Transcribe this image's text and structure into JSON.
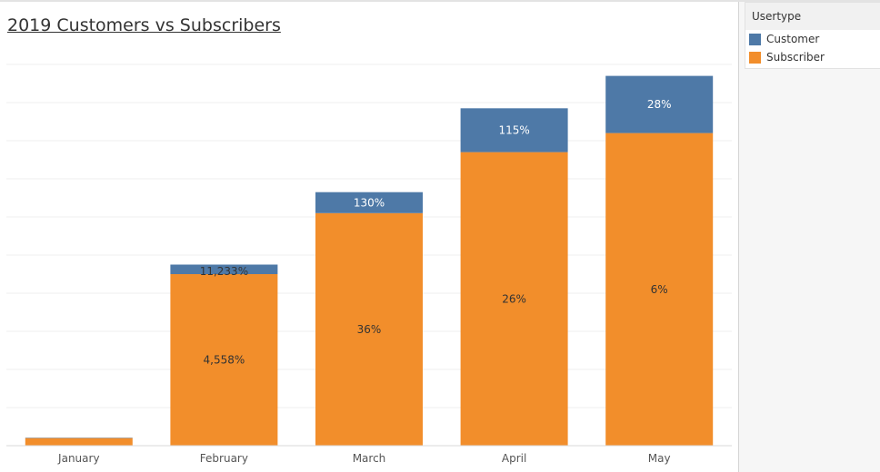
{
  "chart_data": {
    "type": "bar",
    "stacked": true,
    "title": "2019 Customers vs Subscribers",
    "xlabel": "",
    "ylabel": "",
    "categories": [
      "January",
      "February",
      "March",
      "April",
      "May"
    ],
    "series": [
      {
        "name": "Subscriber",
        "color": "#f28e2b",
        "values": [
          2,
          45,
          61,
          77,
          82
        ],
        "labels": [
          "",
          "4,558%",
          "36%",
          "26%",
          "6%"
        ]
      },
      {
        "name": "Customer",
        "color": "#4e79a7",
        "values": [
          0.1,
          2.5,
          5.5,
          11.5,
          15
        ],
        "labels": [
          "",
          "11,233%",
          "130%",
          "115%",
          "28%"
        ]
      }
    ],
    "ylim": [
      0,
      100
    ],
    "y_tick_labels_shown": false,
    "grid": true,
    "legend_position": "right"
  },
  "legend": {
    "title": "Usertype",
    "items": [
      {
        "label": "Customer",
        "color": "#4e79a7"
      },
      {
        "label": "Subscriber",
        "color": "#f28e2b"
      }
    ]
  }
}
